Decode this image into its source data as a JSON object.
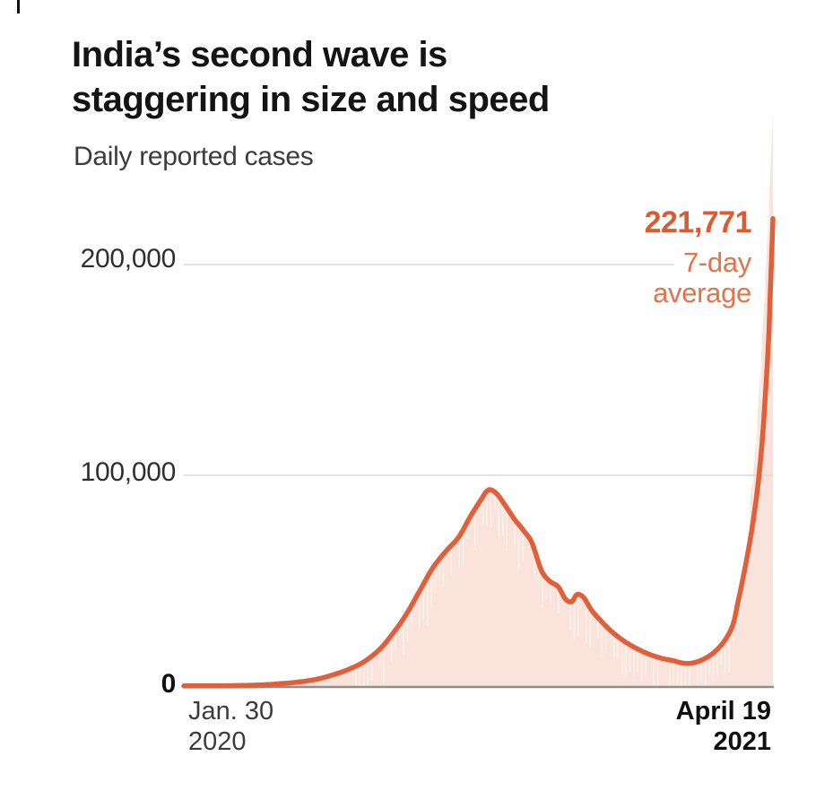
{
  "header": {
    "title_line1": "India’s second wave is",
    "title_line2": "staggering in size and speed",
    "subtitle": "Daily reported cases"
  },
  "chart_data": {
    "type": "area",
    "title": "India’s second wave is staggering in size and speed",
    "subtitle": "Daily reported cases",
    "xlabel": "",
    "ylabel": "Daily reported cases",
    "grid": "on",
    "x_range": {
      "start_date": "Jan. 30 2020",
      "end_date": "April 19 2021",
      "total_days": 445
    },
    "x_ticks": [
      {
        "line1": "Jan. 30",
        "line2": "2020",
        "position": "start",
        "bold": false
      },
      {
        "line1": "April 19",
        "line2": "2021",
        "position": "end",
        "bold": true
      }
    ],
    "y_ticks": [
      {
        "value": 0,
        "label": "0",
        "bold": true
      },
      {
        "value": 100000,
        "label": "100,000",
        "bold": false
      },
      {
        "value": 200000,
        "label": "200,000",
        "bold": false
      }
    ],
    "ylim": [
      0,
      280000
    ],
    "annotation": {
      "value": 221771,
      "value_label": "221,771",
      "label_line1": "7-day",
      "label_line2": "average",
      "at": "end of series"
    },
    "series": [
      {
        "name": "7-day average",
        "type": "line",
        "color": "#E0603C",
        "points_day_cases": [
          [
            0,
            100
          ],
          [
            25,
            150
          ],
          [
            45,
            300
          ],
          [
            60,
            600
          ],
          [
            72,
            1100
          ],
          [
            85,
            1800
          ],
          [
            100,
            3200
          ],
          [
            112,
            5200
          ],
          [
            124,
            7800
          ],
          [
            136,
            11500
          ],
          [
            148,
            17500
          ],
          [
            158,
            25000
          ],
          [
            168,
            34000
          ],
          [
            178,
            45000
          ],
          [
            188,
            56000
          ],
          [
            198,
            64000
          ],
          [
            208,
            71000
          ],
          [
            216,
            80000
          ],
          [
            224,
            88000
          ],
          [
            230,
            93000
          ],
          [
            236,
            91500
          ],
          [
            243,
            85500
          ],
          [
            250,
            79000
          ],
          [
            257,
            73500
          ],
          [
            263,
            68000
          ],
          [
            270,
            55000
          ],
          [
            276,
            50000
          ],
          [
            283,
            47000
          ],
          [
            288,
            41500
          ],
          [
            293,
            40000
          ],
          [
            297,
            43500
          ],
          [
            302,
            42000
          ],
          [
            308,
            36000
          ],
          [
            315,
            31000
          ],
          [
            323,
            26000
          ],
          [
            331,
            22000
          ],
          [
            340,
            18500
          ],
          [
            350,
            15500
          ],
          [
            360,
            13300
          ],
          [
            370,
            12000
          ],
          [
            378,
            10800
          ],
          [
            386,
            11200
          ],
          [
            394,
            13200
          ],
          [
            402,
            16800
          ],
          [
            409,
            22000
          ],
          [
            415,
            29500
          ],
          [
            418,
            38000
          ],
          [
            422,
            50000
          ],
          [
            426,
            63000
          ],
          [
            430,
            78000
          ],
          [
            434,
            97000
          ],
          [
            437,
            117000
          ],
          [
            440,
            145000
          ],
          [
            442,
            168000
          ],
          [
            443,
            186000
          ],
          [
            444,
            203000
          ],
          [
            445,
            221771
          ]
        ]
      },
      {
        "name": "Daily reported cases",
        "type": "area",
        "color": "#FAE3DA",
        "note": "jagged daily bars filled under curve; daily values lead the average in the final surge",
        "tail_points_day_cases": [
          [
            428,
            90000
          ],
          [
            430,
            100000
          ],
          [
            432,
            115000
          ],
          [
            434,
            135000
          ],
          [
            436,
            155000
          ],
          [
            438,
            178000
          ],
          [
            440,
            203000
          ],
          [
            442,
            228000
          ],
          [
            443,
            243000
          ],
          [
            444,
            259000
          ],
          [
            445,
            275000
          ]
        ]
      }
    ],
    "colors": {
      "line": "#E0603C",
      "fill": "#FAE3DA",
      "annotation_value": "#DC5B33",
      "annotation_label": "#E2734B",
      "gridline": "#D9D9D9",
      "axis": "#8F8F8F",
      "title": "#141414",
      "subtitle": "#3C3C3C"
    }
  }
}
